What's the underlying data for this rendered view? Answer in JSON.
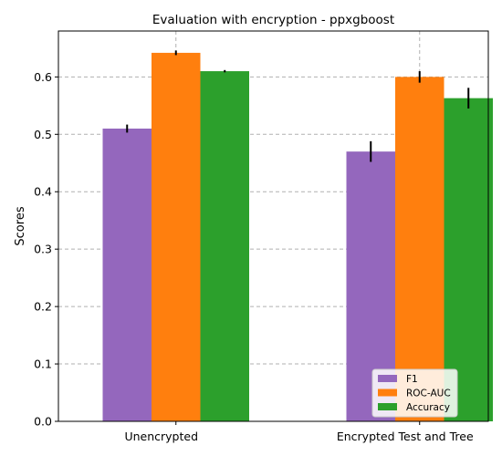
{
  "chart_data": {
    "type": "bar",
    "title": "Evaluation with encryption - ppxgboost",
    "xlabel": "",
    "ylabel": "Scores",
    "categories": [
      "Unencrypted",
      "Encrypted Test and Tree"
    ],
    "ylim": [
      0,
      0.68
    ],
    "yticks": [
      "0.0",
      "0.1",
      "0.2",
      "0.3",
      "0.4",
      "0.5",
      "0.6"
    ],
    "grid": true,
    "legend_position": "bottom-right",
    "series": [
      {
        "name": "F1",
        "color": "#9467bd",
        "values": [
          0.51,
          0.47
        ],
        "errors": [
          0.007,
          0.018
        ]
      },
      {
        "name": "ROC-AUC",
        "color": "#ff7f0e",
        "values": [
          0.642,
          0.6
        ],
        "errors": [
          0.004,
          0.01
        ]
      },
      {
        "name": "Accuracy",
        "color": "#2ca02c",
        "values": [
          0.61,
          0.563
        ],
        "errors": [
          0.002,
          0.018
        ]
      }
    ]
  }
}
